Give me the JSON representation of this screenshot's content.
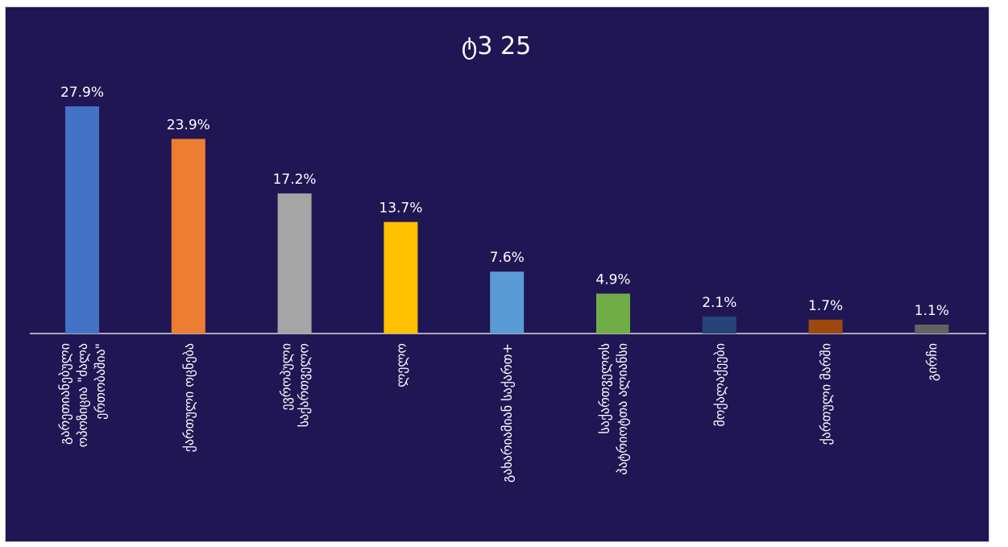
{
  "chart_data": {
    "type": "bar",
    "title": "ტ3 25",
    "categories": [
      [
        "გარეთიანებული",
        "ოპოზიცია \"ძალა",
        "ერთობაშია\""
      ],
      [
        "ქართული ოცნება"
      ],
      [
        "ევროპული",
        "საქართველო"
      ],
      [
        "ლელო"
      ],
      [
        "გახარიამიან საქართ+"
      ],
      [
        "საქართველოს",
        "პატრიოტთა ალიანსი"
      ],
      [
        "მოქალაქეები"
      ],
      [
        "ქართული მარში"
      ],
      [
        "გირჩი"
      ]
    ],
    "values": [
      27.9,
      23.9,
      17.2,
      13.7,
      7.6,
      4.9,
      2.1,
      1.7,
      1.1
    ],
    "value_labels": [
      "27.9%",
      "23.9%",
      "17.2%",
      "13.7%",
      "7.6%",
      "4.9%",
      "2.1%",
      "1.7%",
      "1.1%"
    ],
    "colors": [
      "#4472c4",
      "#ed7d31",
      "#a5a5a5",
      "#ffc000",
      "#5b9bd5",
      "#70ad47",
      "#264478",
      "#9e480e",
      "#636363"
    ],
    "ylim": [
      0,
      27.9
    ],
    "grid": false,
    "legend": "none",
    "background": "#201654"
  }
}
